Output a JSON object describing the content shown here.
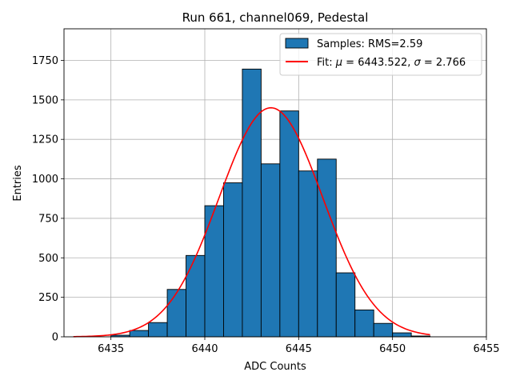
{
  "chart_data": {
    "type": "bar",
    "title": "Run 661, channel069, Pedestal",
    "xlabel": "ADC Counts",
    "ylabel": "Entries",
    "xlim": [
      6432.5,
      6455
    ],
    "ylim": [
      0,
      1950
    ],
    "xticks": [
      6435,
      6440,
      6445,
      6450,
      6455
    ],
    "yticks": [
      0,
      250,
      500,
      750,
      1000,
      1250,
      1500,
      1750
    ],
    "grid": true,
    "legend_position": "top-right",
    "histogram": {
      "name": "Samples: RMS=2.59",
      "color": "#1f77b4",
      "edgecolor": "#000000",
      "bin_edges": [
        6435,
        6436,
        6437,
        6438,
        6439,
        6440,
        6441,
        6442,
        6443,
        6444,
        6445,
        6446,
        6447,
        6448,
        6449,
        6450,
        6451,
        6452
      ],
      "values": [
        10,
        40,
        90,
        300,
        515,
        830,
        975,
        1695,
        1095,
        1430,
        1050,
        1125,
        405,
        170,
        85,
        25,
        5
      ]
    },
    "fit": {
      "name_prefix": "Fit: ",
      "name_mu": "μ",
      "name_mid": " = 6443.522, ",
      "name_sigma": "σ",
      "name_suffix": " = 2.766",
      "color": "#ff0000",
      "mu": 6443.522,
      "sigma": 2.766,
      "amplitude": 1450,
      "x_range": [
        6433,
        6452
      ]
    }
  }
}
